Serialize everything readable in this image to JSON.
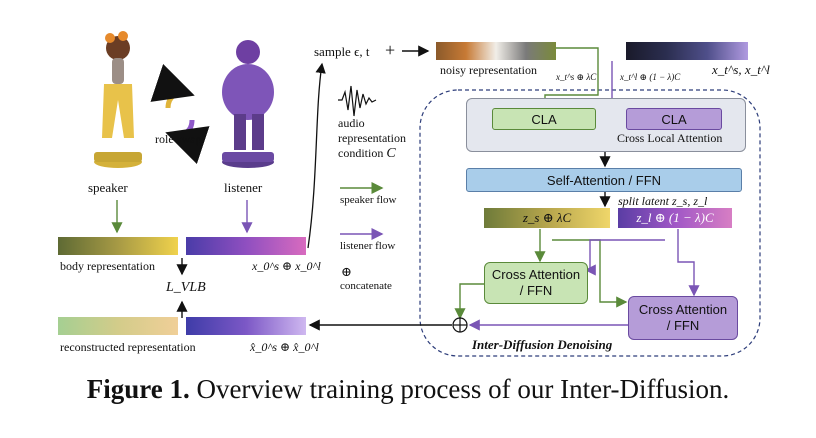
{
  "characters": {
    "speaker": "speaker",
    "listener": "listener",
    "role_swap": "role swap"
  },
  "sample": "sample ϵ, t",
  "plus_sign": "+",
  "noisy_representation": "noisy representation",
  "latent_top": "x_t^s, x_t^l",
  "cla_input_left": "x_t^s ⊕ λC",
  "cla_input_right": "x_t^l ⊕ (1 − λ)C",
  "audio": {
    "line1": "audio",
    "line2": "representation",
    "line3": "condition",
    "symbol": "C"
  },
  "legend": {
    "speaker_flow": "speaker flow",
    "listener_flow": "listener flow",
    "concat_symbol": "⊕",
    "concatenate": "concatenate"
  },
  "body_representation": "body representation",
  "x0_label": "x_0^s ⊕ x_0^l",
  "loss_label": "L_VLB",
  "reconstructed_representation": "reconstructed representation",
  "x0_hat_label": "x̂_0^s ⊕ x̂_0^l",
  "cla_left": "CLA",
  "cla_right": "CLA",
  "cross_local_attention": "Cross Local Attention",
  "self_attention": "Self-Attention / FFN",
  "split_latent": "split latent z_s, z_l",
  "zs_label": "z_s ⊕ λC",
  "zl_label": "z_l ⊕ (1 − λ)C",
  "cross_attn_left": [
    "Cross Attention",
    "/ FFN"
  ],
  "cross_attn_right": [
    "Cross Attention",
    "/ FFN"
  ],
  "inter_diffusion": "Inter-Diffusion Denoising",
  "caption": {
    "prefix": "Figure 1.",
    "text": " Overview training process of our Inter-Diffusion."
  },
  "colors": {
    "speaker_flow": "#5a8a3a",
    "listener_flow": "#7a55b5",
    "cla_left_fill": "#c8e4b4",
    "cla_right_fill": "#b59cd8",
    "cla_panel": "#e4e7ee",
    "self_attn_fill": "#a9cdea",
    "cross_left_fill": "#c8e4b4",
    "cross_right_fill": "#b59cd8",
    "dashed_border": "#2d3d7a"
  }
}
